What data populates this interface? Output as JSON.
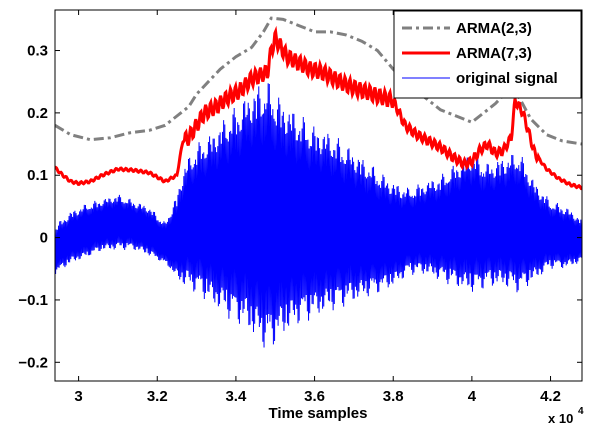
{
  "chart_data": {
    "type": "line",
    "title": "",
    "xlabel": "Time samples",
    "ylabel": "",
    "x_scale_label": "x 10",
    "x_scale_exponent": "4",
    "xlim": [
      29400,
      42800
    ],
    "ylim": [
      -0.23,
      0.365
    ],
    "xticks": [
      30000,
      32000,
      34000,
      36000,
      38000,
      40000,
      42000
    ],
    "xtick_labels": [
      "3",
      "3.2",
      "3.4",
      "3.6",
      "3.8",
      "4",
      "4.2"
    ],
    "yticks": [
      -0.2,
      -0.1,
      0,
      0.1,
      0.2,
      0.3
    ],
    "ytick_labels": [
      "−0.2",
      "−0.1",
      "0",
      "0.1",
      "0.2",
      "0.3"
    ],
    "grid": false,
    "legend_position": "top-right",
    "colors": {
      "arma23": "#808080",
      "arma73": "#ff0000",
      "signal": "#0000ff"
    },
    "series": [
      {
        "name": "ARMA(2,3)",
        "style": "dash-dot",
        "x": [
          29400,
          29800,
          30300,
          30800,
          31300,
          31800,
          32200,
          32500,
          32800,
          33000,
          33300,
          33600,
          34000,
          34400,
          34700,
          34900,
          35200,
          35600,
          36000,
          36400,
          36800,
          37200,
          37600,
          38000,
          38400,
          38800,
          39200,
          39600,
          40000,
          40300,
          40600,
          40900,
          41200,
          41500,
          41900,
          42300,
          42800
        ],
        "y": [
          0.18,
          0.165,
          0.157,
          0.16,
          0.168,
          0.172,
          0.18,
          0.195,
          0.21,
          0.23,
          0.25,
          0.27,
          0.29,
          0.305,
          0.33,
          0.352,
          0.35,
          0.34,
          0.33,
          0.33,
          0.325,
          0.315,
          0.3,
          0.27,
          0.245,
          0.225,
          0.205,
          0.195,
          0.185,
          0.2,
          0.215,
          0.235,
          0.225,
          0.19,
          0.165,
          0.155,
          0.15
        ]
      },
      {
        "name": "ARMA(7,3)",
        "style": "solid",
        "x": [
          29400,
          29600,
          29800,
          30000,
          30300,
          30600,
          31000,
          31400,
          31800,
          32200,
          32500,
          32650,
          32800,
          33000,
          33200,
          33500,
          33800,
          34100,
          34400,
          34600,
          34800,
          34900,
          35000,
          35300,
          35600,
          35900,
          36200,
          36500,
          36800,
          37100,
          37400,
          37700,
          38000,
          38300,
          38600,
          38900,
          39200,
          39500,
          39800,
          40000,
          40200,
          40400,
          40600,
          40800,
          41000,
          41100,
          41300,
          41600,
          41900,
          42200,
          42500,
          42800
        ],
        "y": [
          0.112,
          0.1,
          0.09,
          0.087,
          0.09,
          0.1,
          0.11,
          0.108,
          0.104,
          0.09,
          0.1,
          0.155,
          0.16,
          0.18,
          0.2,
          0.21,
          0.225,
          0.235,
          0.255,
          0.26,
          0.265,
          0.3,
          0.32,
          0.29,
          0.28,
          0.27,
          0.265,
          0.255,
          0.245,
          0.238,
          0.232,
          0.225,
          0.22,
          0.18,
          0.165,
          0.155,
          0.145,
          0.13,
          0.118,
          0.122,
          0.14,
          0.15,
          0.135,
          0.14,
          0.16,
          0.22,
          0.2,
          0.135,
          0.11,
          0.095,
          0.085,
          0.08
        ]
      },
      {
        "name": "original signal",
        "style": "solid",
        "x": [
          29400,
          29800,
          30200,
          30600,
          31000,
          31400,
          31800,
          32200,
          32500,
          32700,
          33000,
          33400,
          33800,
          34200,
          34500,
          34800,
          35200,
          35600,
          36000,
          36400,
          36800,
          37200,
          37600,
          38000,
          38400,
          38800,
          39200,
          39600,
          40000,
          40400,
          40800,
          41200,
          41600,
          42000,
          42400,
          42800
        ],
        "y_upper": [
          0.02,
          0.045,
          0.06,
          0.065,
          0.07,
          0.06,
          0.05,
          0.03,
          0.08,
          0.12,
          0.15,
          0.17,
          0.2,
          0.22,
          0.24,
          0.25,
          0.22,
          0.2,
          0.18,
          0.17,
          0.15,
          0.13,
          0.11,
          0.09,
          0.08,
          0.09,
          0.1,
          0.12,
          0.14,
          0.12,
          0.13,
          0.14,
          0.09,
          0.06,
          0.05,
          0.03
        ],
        "y_lower": [
          -0.06,
          -0.04,
          -0.03,
          -0.02,
          -0.02,
          -0.02,
          -0.03,
          -0.04,
          -0.06,
          -0.08,
          -0.09,
          -0.11,
          -0.13,
          -0.15,
          -0.17,
          -0.19,
          -0.16,
          -0.14,
          -0.13,
          -0.12,
          -0.11,
          -0.1,
          -0.09,
          -0.08,
          -0.06,
          -0.06,
          -0.07,
          -0.08,
          -0.09,
          -0.08,
          -0.08,
          -0.09,
          -0.07,
          -0.05,
          -0.05,
          -0.04
        ],
        "y_offset": [
          -0.02,
          0.0,
          0.01,
          0.02,
          0.025,
          0.02,
          0.01,
          -0.01,
          0.0,
          0.02,
          0.03,
          0.03,
          0.035,
          0.04,
          0.04,
          0.035,
          0.03,
          0.03,
          0.025,
          0.025,
          0.02,
          0.015,
          0.01,
          0.005,
          0.01,
          0.015,
          0.015,
          0.02,
          0.025,
          0.02,
          0.025,
          0.025,
          0.01,
          0.005,
          0.0,
          -0.005
        ]
      }
    ]
  }
}
